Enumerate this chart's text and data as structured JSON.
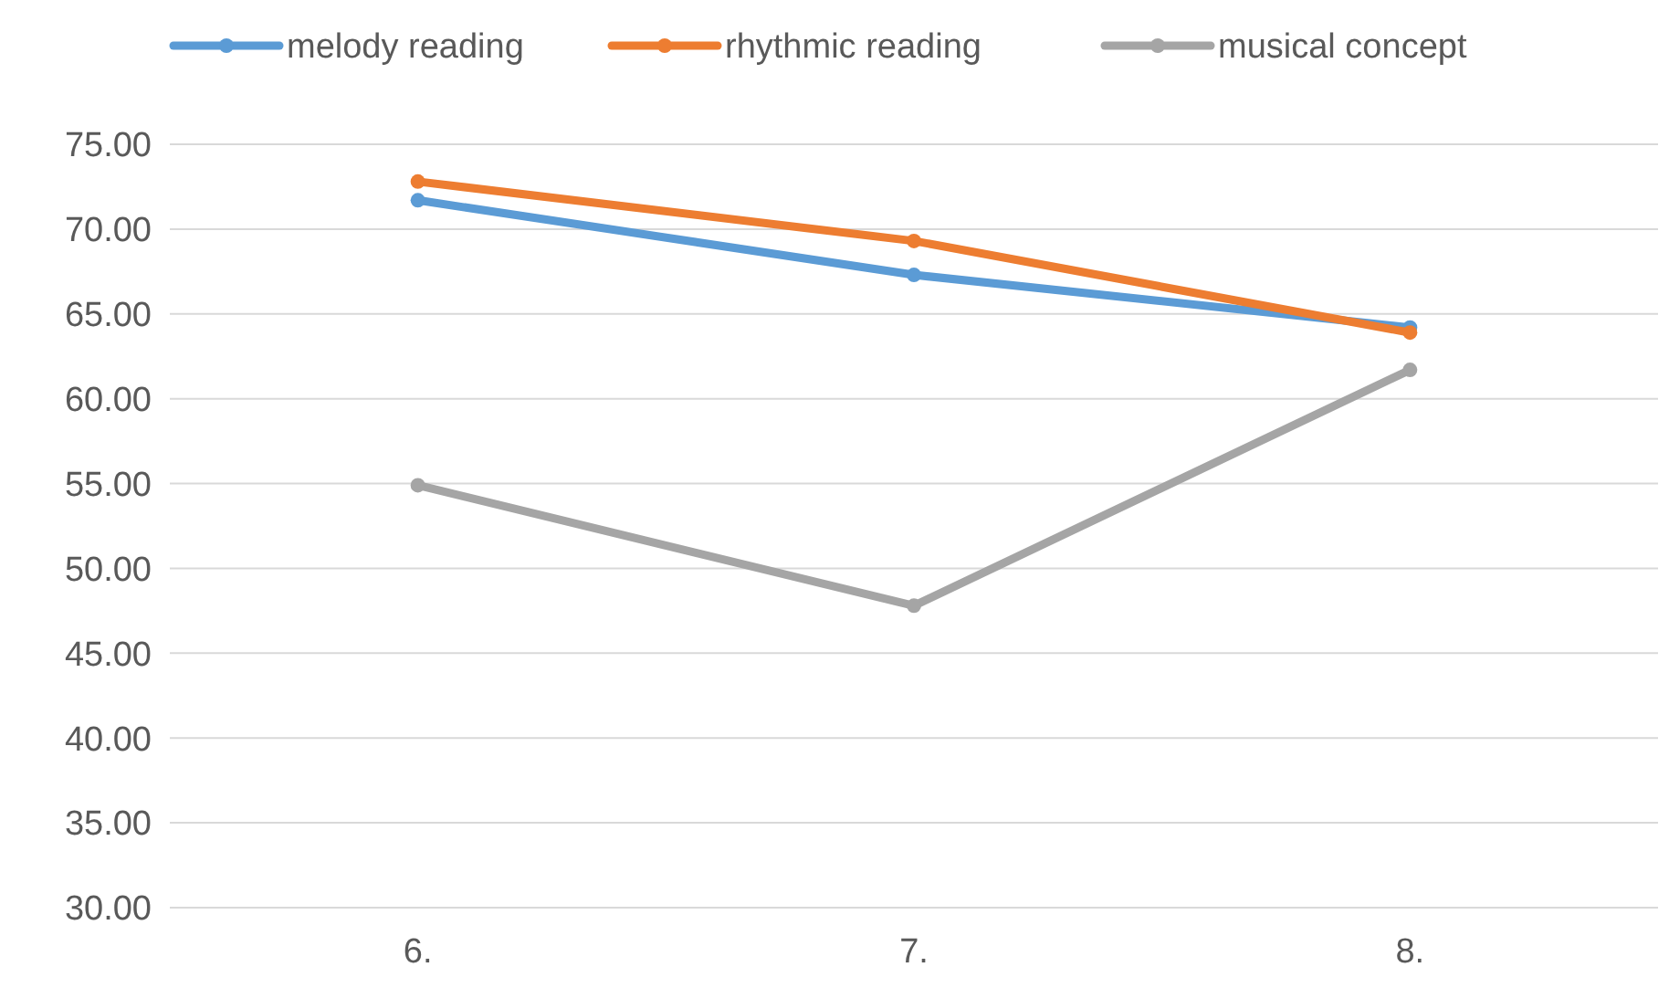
{
  "chart_data": {
    "type": "line",
    "categories": [
      "6.",
      "7.",
      "8."
    ],
    "series": [
      {
        "name": "melody reading",
        "color": "#5b9bd5",
        "values": [
          71.7,
          67.3,
          64.2
        ]
      },
      {
        "name": "rhythmic reading",
        "color": "#ed7d31",
        "values": [
          72.8,
          69.3,
          63.9
        ]
      },
      {
        "name": "musical concept",
        "color": "#a5a5a5",
        "values": [
          54.9,
          47.8,
          61.7
        ]
      }
    ],
    "ylim": [
      30,
      75
    ],
    "yticks": [
      {
        "value": 30,
        "label": "30.00"
      },
      {
        "value": 35,
        "label": "35.00"
      },
      {
        "value": 40,
        "label": "40.00"
      },
      {
        "value": 45,
        "label": "45.00"
      },
      {
        "value": 50,
        "label": "50.00"
      },
      {
        "value": 55,
        "label": "55.00"
      },
      {
        "value": 60,
        "label": "60.00"
      },
      {
        "value": 65,
        "label": "65.00"
      },
      {
        "value": 70,
        "label": "70.00"
      },
      {
        "value": 75,
        "label": "75.00"
      }
    ],
    "grid": "y",
    "legend": "top",
    "marker": "circle",
    "line_style": "solid"
  }
}
